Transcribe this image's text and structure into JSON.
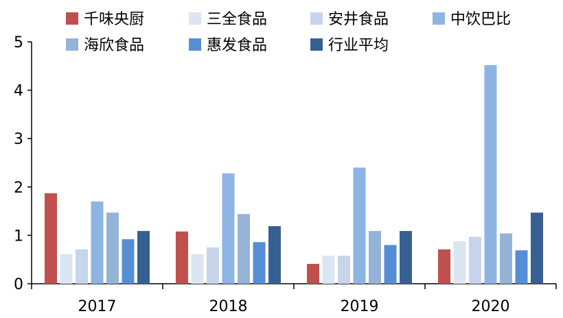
{
  "chart_data": {
    "type": "bar",
    "title": "",
    "xlabel": "",
    "ylabel": "",
    "categories": [
      "2017",
      "2018",
      "2019",
      "2020"
    ],
    "ylim": [
      0,
      5
    ],
    "yticks": [
      "0",
      "1",
      "2",
      "3",
      "4",
      "5"
    ],
    "grid": false,
    "legend_position": "top",
    "series": [
      {
        "name": "千味央厨",
        "color": "#c0504d",
        "values": [
          1.87,
          1.08,
          0.41,
          0.71
        ]
      },
      {
        "name": "三全食品",
        "color": "#dce6f2",
        "values": [
          0.61,
          0.61,
          0.58,
          0.88
        ]
      },
      {
        "name": "安井食品",
        "color": "#c6d5eb",
        "values": [
          0.71,
          0.75,
          0.58,
          0.97
        ]
      },
      {
        "name": "中饮巴比",
        "color": "#8eb4e3",
        "values": [
          1.7,
          2.28,
          2.4,
          4.52
        ]
      },
      {
        "name": "海欣食品",
        "color": "#95b3d7",
        "values": [
          1.47,
          1.44,
          1.09,
          1.04
        ]
      },
      {
        "name": "惠发食品",
        "color": "#558ed5",
        "values": [
          0.92,
          0.86,
          0.8,
          0.69
        ]
      },
      {
        "name": "行业平均",
        "color": "#376092",
        "values": [
          1.09,
          1.19,
          1.09,
          1.47
        ]
      }
    ]
  }
}
